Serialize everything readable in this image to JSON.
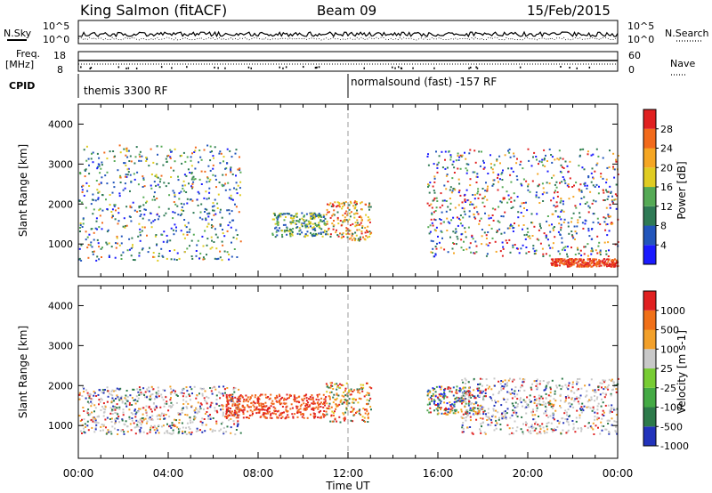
{
  "header": {
    "station": "King Salmon (fitACF)",
    "beam": "Beam 09",
    "date": "15/Feb/2015"
  },
  "status_panels": {
    "nsky_label": "N.Sky",
    "nsearch_label": "N.Search",
    "freq_label_1": "Freq.",
    "freq_label_2": "[MHz]",
    "nave_label": "Nave",
    "cpid_label": "CPID",
    "left_ticks_top": [
      "10^5",
      "10^0"
    ],
    "right_ticks_top": [
      "10^5",
      "10^0"
    ],
    "left_ticks_freq": [
      "18",
      "8"
    ],
    "right_ticks_nave": [
      "60",
      "0"
    ],
    "cpid_segments": [
      {
        "label": "themis 3300 RF",
        "start_hour": 0
      },
      {
        "label": "normalsound (fast) -157 RF",
        "start_hour": 12
      }
    ]
  },
  "chart_data": [
    {
      "type": "heatmap",
      "name": "power",
      "ylabel": "Slant Range [km]",
      "ylim": [
        180,
        4500
      ],
      "yticks": [
        1000,
        2000,
        3000,
        4000
      ],
      "xlim": [
        0,
        24
      ],
      "xticks": [
        "00:00",
        "04:00",
        "08:00",
        "12:00",
        "16:00",
        "20:00",
        "00:00"
      ],
      "colorbar": {
        "label": "Power [dB]",
        "ticks": [
          "28",
          "24",
          "20",
          "16",
          "12",
          "8",
          "4"
        ],
        "colors": [
          "#1a1aff",
          "#2255bb",
          "#2f7a55",
          "#55aa55",
          "#e0cc22",
          "#f5a623",
          "#f26a1b",
          "#e02020"
        ]
      },
      "scatter_regions": [
        {
          "x_start": 0.0,
          "x_end": 7.2,
          "y_min": 600,
          "y_max": 3500,
          "dominant": "green-blue"
        },
        {
          "x_start": 8.6,
          "x_end": 11.0,
          "y_min": 1200,
          "y_max": 1800,
          "dominant": "green"
        },
        {
          "x_start": 11.0,
          "x_end": 13.0,
          "y_min": 1100,
          "y_max": 2100,
          "dominant": "orange"
        },
        {
          "x_start": 15.5,
          "x_end": 24.0,
          "y_min": 700,
          "y_max": 3400,
          "dominant": "blue-green"
        },
        {
          "x_start": 21.0,
          "x_end": 24.0,
          "y_min": 450,
          "y_max": 650,
          "dominant": "red"
        }
      ]
    },
    {
      "type": "heatmap",
      "name": "velocity",
      "ylabel": "Slant Range [km]",
      "ylim": [
        180,
        4500
      ],
      "yticks": [
        1000,
        2000,
        3000,
        4000
      ],
      "xlim": [
        0,
        24
      ],
      "xticks": [
        "00:00",
        "04:00",
        "08:00",
        "12:00",
        "16:00",
        "20:00",
        "00:00"
      ],
      "xlabel": "Time UT",
      "colorbar": {
        "label": "Velocity [m s-1]",
        "ticks": [
          "1000",
          "500",
          "100",
          "25",
          "-25",
          "-100",
          "-500",
          "-1000"
        ],
        "colors": [
          "#2233bb",
          "#2d7a4a",
          "#44aa44",
          "#77cc33",
          "#c8c8c8",
          "#f2a02a",
          "#f07018",
          "#e02020"
        ]
      },
      "scatter_regions": [
        {
          "x_start": 0.0,
          "x_end": 7.2,
          "y_min": 800,
          "y_max": 2000,
          "dominant": "gray"
        },
        {
          "x_start": 6.5,
          "x_end": 11.0,
          "y_min": 1200,
          "y_max": 1800,
          "dominant": "red"
        },
        {
          "x_start": 11.0,
          "x_end": 13.0,
          "y_min": 1100,
          "y_max": 2100,
          "dominant": "orange"
        },
        {
          "x_start": 15.5,
          "x_end": 18.0,
          "y_min": 1300,
          "y_max": 2000,
          "dominant": "blue-green"
        },
        {
          "x_start": 17.0,
          "x_end": 24.0,
          "y_min": 800,
          "y_max": 2200,
          "dominant": "gray"
        }
      ]
    }
  ]
}
